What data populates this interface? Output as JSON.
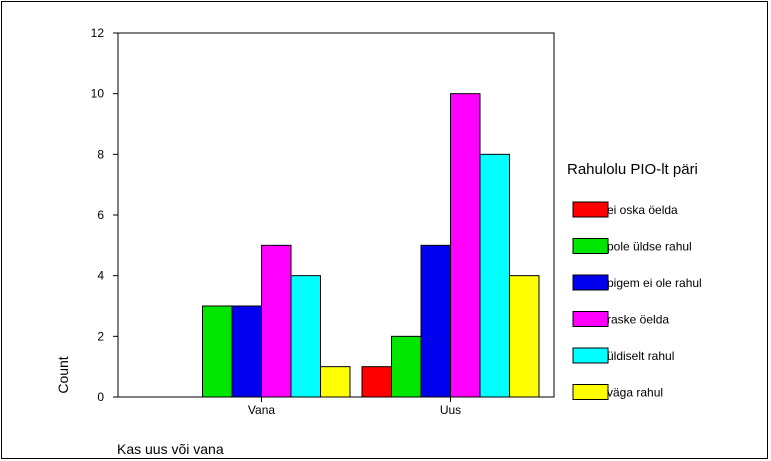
{
  "chart_data": {
    "type": "bar",
    "title": "",
    "xlabel": "Kas uus või vana",
    "ylabel": "Count",
    "ylim": [
      0,
      12
    ],
    "yticks": [
      "0",
      "2",
      "4",
      "6",
      "8",
      "10",
      "12"
    ],
    "categories": [
      "Vana",
      "Uus"
    ],
    "legend_title": "Rahulolu PIO-lt päri",
    "legend_position": "right",
    "grid": false,
    "series": [
      {
        "name": "ei oska öelda",
        "color": "#ff0000",
        "values": [
          0,
          1
        ]
      },
      {
        "name": "pole üldse rahul",
        "color": "#00e600",
        "values": [
          3,
          2
        ]
      },
      {
        "name": "pigem ei ole rahul",
        "color": "#0000ee",
        "values": [
          3,
          5
        ]
      },
      {
        "name": "raske öelda",
        "color": "#ff00ff",
        "values": [
          5,
          10
        ]
      },
      {
        "name": "üldiselt rahul",
        "color": "#00ffff",
        "values": [
          4,
          8
        ]
      },
      {
        "name": "väga rahul",
        "color": "#ffff00",
        "values": [
          1,
          4
        ]
      }
    ]
  }
}
